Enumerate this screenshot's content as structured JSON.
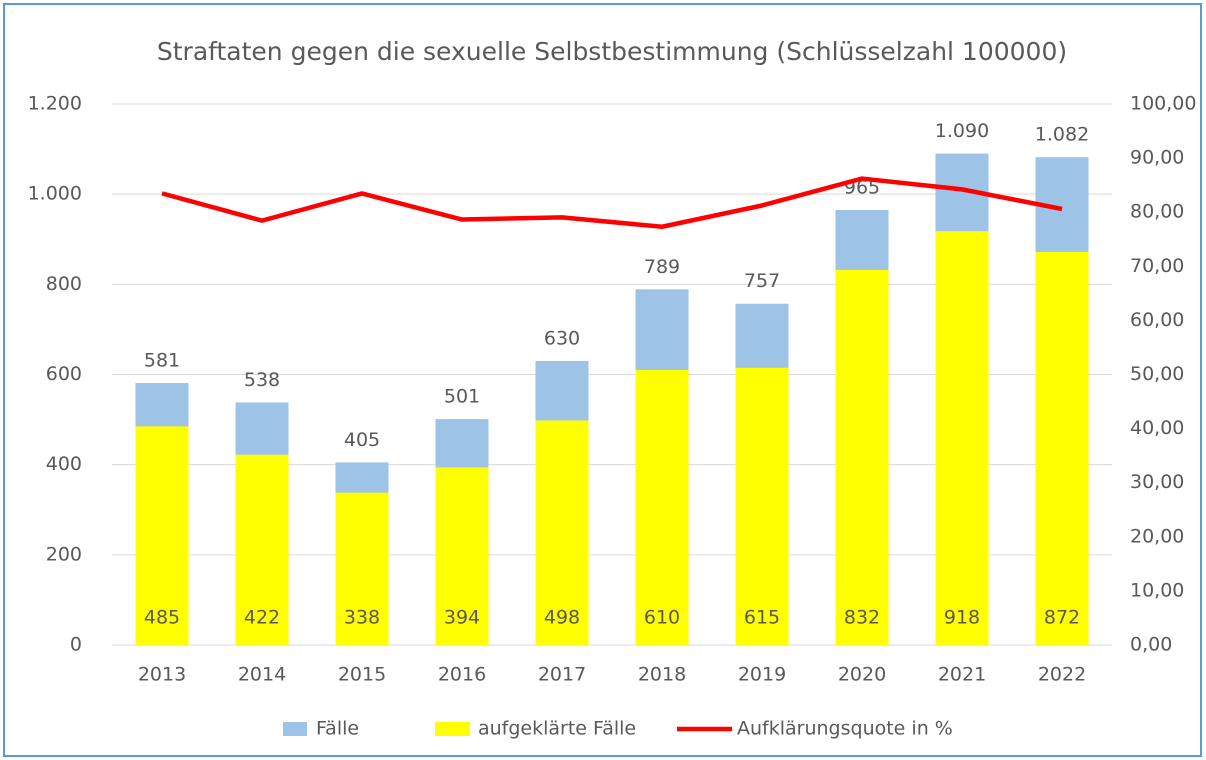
{
  "chart_data": {
    "type": "bar",
    "title": "Straftaten gegen die sexuelle Selbstbestimmung (Schlüsselzahl 100000)",
    "categories": [
      "2013",
      "2014",
      "2015",
      "2016",
      "2017",
      "2018",
      "2019",
      "2020",
      "2021",
      "2022"
    ],
    "series": [
      {
        "name": "Fälle",
        "type": "bar",
        "color": "#9dc3e6",
        "values": [
          581,
          538,
          405,
          501,
          630,
          789,
          757,
          965,
          1090,
          1082
        ],
        "value_labels": [
          "581",
          "538",
          "405",
          "501",
          "630",
          "789",
          "757",
          "965",
          "1.090",
          "1.082"
        ]
      },
      {
        "name": "aufgeklärte Fälle",
        "type": "bar",
        "color": "#ffff00",
        "values": [
          485,
          422,
          338,
          394,
          498,
          610,
          615,
          832,
          918,
          872
        ]
      },
      {
        "name": "Aufklärungsquote in %",
        "type": "line",
        "axis": "y2",
        "color": "#ff0000",
        "values": [
          83.48,
          78.44,
          83.46,
          78.64,
          79.05,
          77.31,
          81.24,
          86.22,
          84.22,
          80.59
        ]
      }
    ],
    "ylim": [
      0,
      1200
    ],
    "yticks": [
      0,
      200,
      400,
      600,
      800,
      {
        "value": 1000,
        "label": "1.000"
      },
      {
        "value": 1200,
        "label": "1.200"
      }
    ],
    "y2lim": [
      0,
      100
    ],
    "y2ticks": [
      {
        "value": 0,
        "label": "0,00"
      },
      {
        "value": 10,
        "label": "10,00"
      },
      {
        "value": 20,
        "label": "20,00"
      },
      {
        "value": 30,
        "label": "30,00"
      },
      {
        "value": 40,
        "label": "40,00"
      },
      {
        "value": 50,
        "label": "50,00"
      },
      {
        "value": 60,
        "label": "60,00"
      },
      {
        "value": 70,
        "label": "70,00"
      },
      {
        "value": 80,
        "label": "80,00"
      },
      {
        "value": 90,
        "label": "90,00"
      },
      {
        "value": 100,
        "label": "100,00"
      }
    ],
    "grid": true,
    "legend": "bottom"
  }
}
